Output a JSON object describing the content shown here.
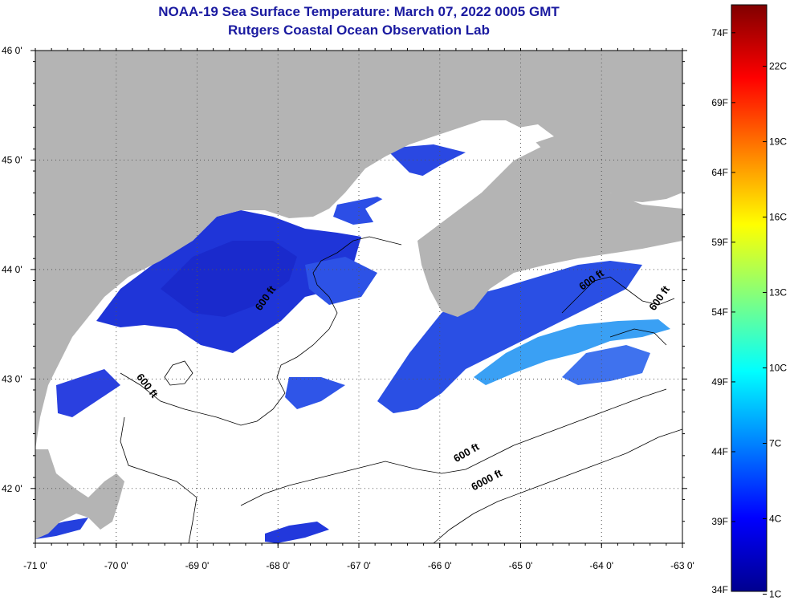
{
  "title": {
    "line1": "NOAA-19 Sea Surface Temperature:  March 07, 2022 0005 GMT",
    "line2": "Rutgers Coastal Ocean Observation Lab"
  },
  "map": {
    "lon_range": [
      -71,
      -63
    ],
    "lat_range": [
      41.5,
      46
    ],
    "lon_ticks": [
      {
        "value": -71,
        "label": "-71 0'"
      },
      {
        "value": -70,
        "label": "-70 0'"
      },
      {
        "value": -69,
        "label": "-69 0'"
      },
      {
        "value": -68,
        "label": "-68 0'"
      },
      {
        "value": -67,
        "label": "-67 0'"
      },
      {
        "value": -66,
        "label": "-66 0'"
      },
      {
        "value": -65,
        "label": "-65 0'"
      },
      {
        "value": -64,
        "label": "-64 0'"
      },
      {
        "value": -63,
        "label": "-63 0'"
      }
    ],
    "lat_ticks": [
      {
        "value": 46,
        "label": "46 0'"
      },
      {
        "value": 45,
        "label": "45 0'"
      },
      {
        "value": 44,
        "label": "44 0'"
      },
      {
        "value": 43,
        "label": "43 0'"
      },
      {
        "value": 42,
        "label": "42 0'"
      }
    ],
    "grid": "dotted",
    "land_color": "#b4b4b4",
    "no_data_color": "#ffffff",
    "contour_labels": [
      {
        "text": "600 ft",
        "lon": -69.65,
        "lat": 42.92,
        "rotate": 52
      },
      {
        "text": "600 ft",
        "lon": -68.12,
        "lat": 43.72,
        "rotate": -55
      },
      {
        "text": "600 ft",
        "lon": -64.1,
        "lat": 43.88,
        "rotate": -35
      },
      {
        "text": "600 ft",
        "lon": -63.25,
        "lat": 43.72,
        "rotate": -55
      },
      {
        "text": "600 ft",
        "lon": -65.65,
        "lat": 42.3,
        "rotate": -30
      },
      {
        "text": "6000 ft",
        "lon": -65.4,
        "lat": 42.05,
        "rotate": -28
      }
    ]
  },
  "colorbar": {
    "range_f": [
      34,
      76
    ],
    "stops": [
      "#00008f",
      "#0000ff",
      "#0080ff",
      "#00ffff",
      "#80ff80",
      "#ffff00",
      "#ff8000",
      "#ff0000",
      "#800000"
    ],
    "fahrenheit": [
      {
        "value": 34,
        "label": "34F"
      },
      {
        "value": 39,
        "label": "39F"
      },
      {
        "value": 44,
        "label": "44F"
      },
      {
        "value": 49,
        "label": "49F"
      },
      {
        "value": 54,
        "label": "54F"
      },
      {
        "value": 59,
        "label": "59F"
      },
      {
        "value": 64,
        "label": "64F"
      },
      {
        "value": 69,
        "label": "69F"
      },
      {
        "value": 74,
        "label": "74F"
      }
    ],
    "celsius": [
      {
        "value": 1,
        "label": "1C"
      },
      {
        "value": 4,
        "label": "4C"
      },
      {
        "value": 7,
        "label": "7C"
      },
      {
        "value": 10,
        "label": "10C"
      },
      {
        "value": 13,
        "label": "13C"
      },
      {
        "value": 16,
        "label": "16C"
      },
      {
        "value": 19,
        "label": "19C"
      },
      {
        "value": 22,
        "label": "22C"
      }
    ]
  }
}
